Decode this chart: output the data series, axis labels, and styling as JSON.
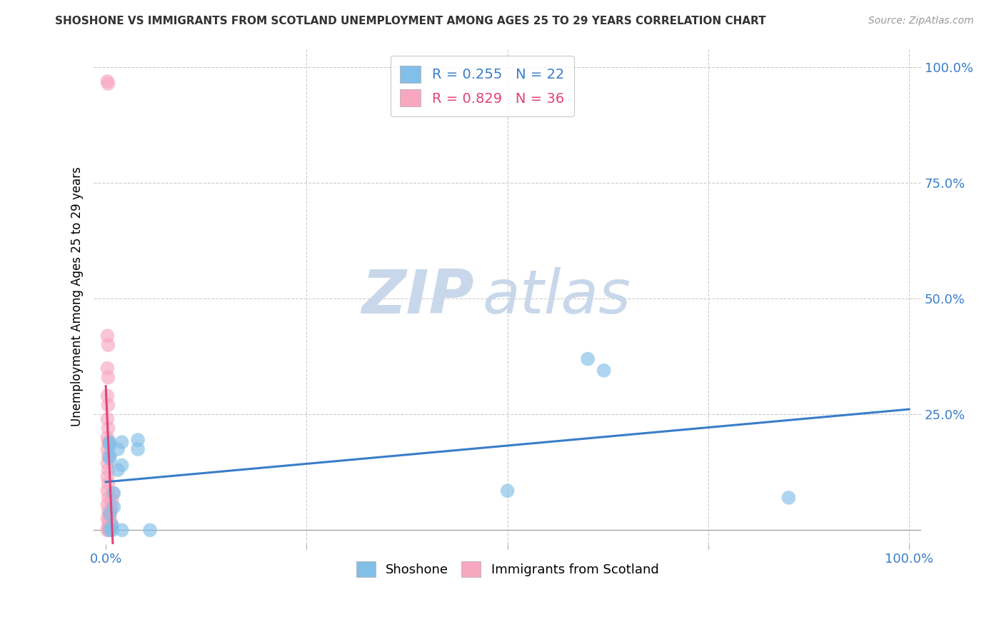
{
  "title": "SHOSHONE VS IMMIGRANTS FROM SCOTLAND UNEMPLOYMENT AMONG AGES 25 TO 29 YEARS CORRELATION CHART",
  "source": "Source: ZipAtlas.com",
  "ylabel": "Unemployment Among Ages 25 to 29 years",
  "shoshone_R": 0.255,
  "shoshone_N": 22,
  "scotland_R": 0.829,
  "scotland_N": 36,
  "shoshone_color": "#82bfe8",
  "scotland_color": "#f7a8c0",
  "shoshone_line_color": "#3a7dc9",
  "scotland_line_color": "#e0437a",
  "watermark_zip": "ZIP",
  "watermark_atlas": "atlas",
  "watermark_color": "#c8d8ea",
  "legend_text_blue": "#3a7dc9",
  "legend_text_pink": "#e0437a",
  "shoshone_label": "Shoshone",
  "scotland_label": "Immigrants from Scotland",
  "shoshone_points": [
    [
      0.008,
      0.0
    ],
    [
      0.02,
      0.0
    ],
    [
      0.055,
      0.0
    ],
    [
      0.005,
      0.0
    ],
    [
      0.005,
      0.035
    ],
    [
      0.01,
      0.05
    ],
    [
      0.01,
      0.08
    ],
    [
      0.015,
      0.13
    ],
    [
      0.02,
      0.14
    ],
    [
      0.015,
      0.175
    ],
    [
      0.02,
      0.19
    ],
    [
      0.04,
      0.175
    ],
    [
      0.04,
      0.195
    ],
    [
      0.5,
      0.085
    ],
    [
      0.85,
      0.07
    ],
    [
      0.6,
      0.37
    ],
    [
      0.62,
      0.345
    ],
    [
      0.005,
      0.16
    ],
    [
      0.005,
      0.155
    ],
    [
      0.005,
      0.185
    ],
    [
      0.005,
      0.19
    ],
    [
      0.008,
      0.01
    ]
  ],
  "scotland_points": [
    [
      0.002,
      0.97
    ],
    [
      0.003,
      0.965
    ],
    [
      0.002,
      0.42
    ],
    [
      0.003,
      0.4
    ],
    [
      0.002,
      0.35
    ],
    [
      0.003,
      0.33
    ],
    [
      0.002,
      0.29
    ],
    [
      0.003,
      0.27
    ],
    [
      0.002,
      0.24
    ],
    [
      0.003,
      0.22
    ],
    [
      0.002,
      0.2
    ],
    [
      0.003,
      0.19
    ],
    [
      0.002,
      0.175
    ],
    [
      0.003,
      0.16
    ],
    [
      0.002,
      0.145
    ],
    [
      0.003,
      0.13
    ],
    [
      0.002,
      0.115
    ],
    [
      0.003,
      0.1
    ],
    [
      0.002,
      0.085
    ],
    [
      0.003,
      0.07
    ],
    [
      0.002,
      0.055
    ],
    [
      0.003,
      0.04
    ],
    [
      0.002,
      0.025
    ],
    [
      0.003,
      0.01
    ],
    [
      0.002,
      0.0
    ],
    [
      0.003,
      0.0
    ],
    [
      0.004,
      0.005
    ],
    [
      0.005,
      0.01
    ],
    [
      0.004,
      0.02
    ],
    [
      0.005,
      0.03
    ],
    [
      0.006,
      0.04
    ],
    [
      0.007,
      0.05
    ],
    [
      0.008,
      0.065
    ],
    [
      0.009,
      0.08
    ],
    [
      0.006,
      0.01
    ],
    [
      0.007,
      0.015
    ]
  ],
  "xlim": [
    0.0,
    1.0
  ],
  "ylim": [
    0.0,
    1.0
  ],
  "grid_color": "#cccccc",
  "grid_style": "--",
  "tick_color": "#3a7dc9"
}
